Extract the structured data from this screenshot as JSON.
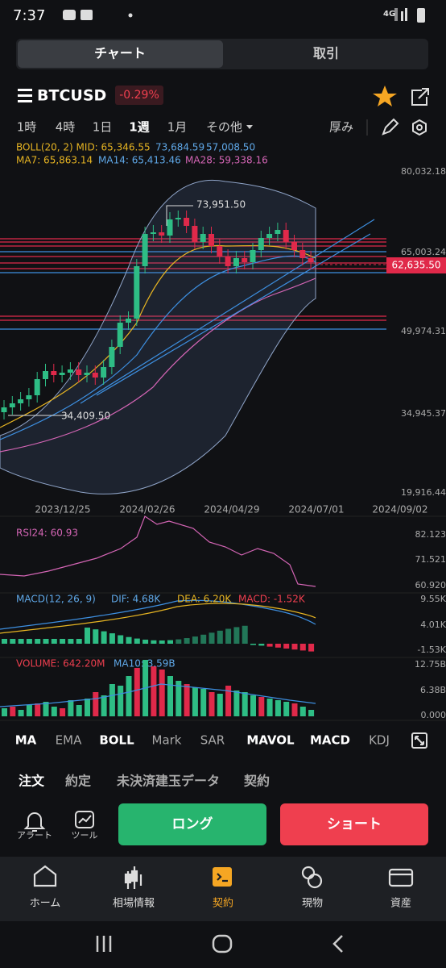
{
  "status_bar": {
    "time": "7:37",
    "network": "4G"
  },
  "tabs": [
    "チャート",
    "取引"
  ],
  "symbol": {
    "name": "BTCUSD",
    "change": "-0.29%"
  },
  "timeframes": [
    "1時",
    "4時",
    "1日",
    "1週",
    "1月",
    "その他"
  ],
  "tools": [
    "厚み"
  ],
  "boll": {
    "label": "BOLL(20, 2) MID: 65,346.55",
    "upper": "73,684.59",
    "lower": "57,008.50"
  },
  "ma": [
    "MA7: 65,863.14",
    "MA14: 65,413.46",
    "MA28: 59,338.16"
  ],
  "price_axis": [
    "80,032.18",
    "65,003.24",
    "49,974.31",
    "34,945.37",
    "19,916.44"
  ],
  "last_price": "62,635.50",
  "annotations": [
    "73,951.50",
    "34,409.50"
  ],
  "dates": [
    "2023/12/25",
    "2024/02/26",
    "2024/04/29",
    "2024/07/01",
    "2024/09/02"
  ],
  "rsi": {
    "label": "RSI24: 60.93",
    "axis": [
      "82.123",
      "71.521",
      "60.920"
    ]
  },
  "macd": {
    "label": "MACD(12, 26, 9)",
    "dif": "DIF: 4.68K",
    "dea": "DEA: 6.20K",
    "macd": "MACD: -1.52K",
    "axis": [
      "9.55K",
      "4.01K",
      "-1.53K"
    ]
  },
  "volume": {
    "label": "VOLUME: 642.20M",
    "ma": "MA10: 3.59B",
    "axis": [
      "12.75B",
      "6.38B",
      "0.000"
    ]
  },
  "indicator_tabs": [
    "MA",
    "EMA",
    "BOLL",
    "Mark",
    "SAR",
    "MAVOL",
    "MACD",
    "KDJ"
  ],
  "order_tabs": [
    "注文",
    "約定",
    "未決済建玉データ",
    "契約"
  ],
  "side_tools": [
    "アラート",
    "ツール"
  ],
  "actions": [
    "ロング",
    "ショート"
  ],
  "nav": [
    "ホーム",
    "相場情報",
    "契約",
    "現物",
    "資産"
  ]
}
